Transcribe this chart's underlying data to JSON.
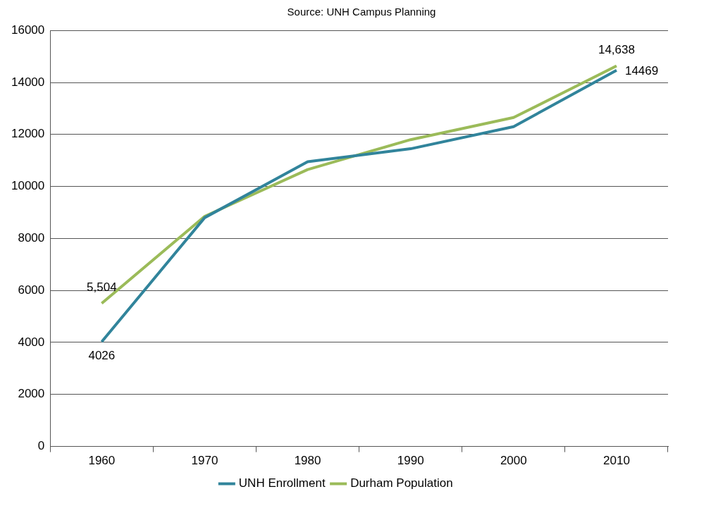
{
  "chart_data": {
    "type": "line",
    "annotations": [
      "Source: UNH Campus Planning"
    ],
    "categories": [
      "1960",
      "1970",
      "1980",
      "1990",
      "2000",
      "2010"
    ],
    "series": [
      {
        "name": "UNH Enrollment",
        "color": "#31849b",
        "values": [
          4026,
          8800,
          10950,
          11450,
          12300,
          14469
        ],
        "value_labels": [
          "4026",
          null,
          null,
          null,
          null,
          "14469"
        ]
      },
      {
        "name": "Durham Population",
        "color": "#9bbb59",
        "values": [
          5504,
          8850,
          10650,
          11800,
          12650,
          14638
        ],
        "value_labels": [
          "5,504",
          null,
          null,
          null,
          null,
          "14,638"
        ]
      }
    ],
    "ylim": [
      0,
      16000
    ],
    "yticks": [
      0,
      2000,
      4000,
      6000,
      8000,
      10000,
      12000,
      14000,
      16000
    ],
    "grid": "y",
    "legend": "bottom",
    "marker": "none",
    "line_style": "solid"
  }
}
